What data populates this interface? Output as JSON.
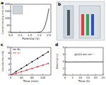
{
  "photo_panel": "b",
  "chart_data": [
    {
      "type": "line",
      "panel": "a",
      "x_label": "Potential (V)",
      "y_label": "Current density (mA cm⁻²)",
      "xlim": [
        0,
        2.1
      ],
      "ylim": [
        0,
        200
      ],
      "xticks": [
        {
          "value": 0,
          "label": "0.0"
        },
        {
          "value": 0.5,
          "label": "0.5"
        },
        {
          "value": 1,
          "label": "1.0"
        },
        {
          "value": 1.5,
          "label": "1.5"
        },
        {
          "value": 2,
          "label": "2.0"
        }
      ],
      "yticks": [
        0,
        50,
        100,
        150,
        200
      ],
      "series": [
        {
          "name": "",
          "color": "#000000",
          "line_style": "solid",
          "marker": "none",
          "x": [
            0,
            0.25,
            0.5,
            0.75,
            1.0,
            1.25,
            1.5,
            1.6,
            1.7,
            1.8,
            1.9,
            2.0
          ],
          "values": [
            0,
            0,
            0,
            0,
            0,
            0.5,
            2,
            6,
            20,
            50,
            100,
            170
          ]
        }
      ]
    },
    {
      "type": "line",
      "panel": "c",
      "x_label": "Time (min)",
      "y_label": "Gas volume (mL)",
      "legend": "upper left",
      "xlim": [
        0,
        150
      ],
      "ylim": [
        0,
        10
      ],
      "xticks": [
        0,
        40,
        80,
        120
      ],
      "yticks": [
        0,
        2,
        4,
        6,
        8,
        10
      ],
      "series": [
        {
          "name": "H₂",
          "color": "#000000",
          "line_style": "solid",
          "marker": "circle",
          "x": [
            0,
            20,
            40,
            60,
            80,
            100,
            120,
            140
          ],
          "values": [
            0,
            1.2,
            2.4,
            3.6,
            4.8,
            6.0,
            7.2,
            8.4
          ]
        },
        {
          "name": "O₂",
          "color": "#d62020",
          "line_style": "solid",
          "marker": "circle",
          "x": [
            0,
            20,
            40,
            60,
            80,
            100,
            120,
            140
          ],
          "values": [
            0,
            0.6,
            1.2,
            1.8,
            2.4,
            3.0,
            3.6,
            4.2
          ]
        }
      ]
    },
    {
      "type": "line",
      "panel": "d",
      "x_label": "Time (h)",
      "y_label": "Potential (V)",
      "annotation": "@100 mA cm⁻²",
      "xlim": [
        0,
        25
      ],
      "ylim": [
        0,
        4
      ],
      "xticks": [
        0,
        5,
        10,
        15,
        20,
        25
      ],
      "yticks": [
        0,
        1,
        2,
        3,
        4
      ],
      "series": [
        {
          "name": "",
          "color": "#000000",
          "line_style": "solid",
          "marker": "none",
          "x": [
            0,
            5,
            10,
            15,
            20,
            25
          ],
          "values": [
            1.88,
            1.89,
            1.9,
            1.9,
            1.91,
            1.91
          ]
        }
      ]
    }
  ]
}
